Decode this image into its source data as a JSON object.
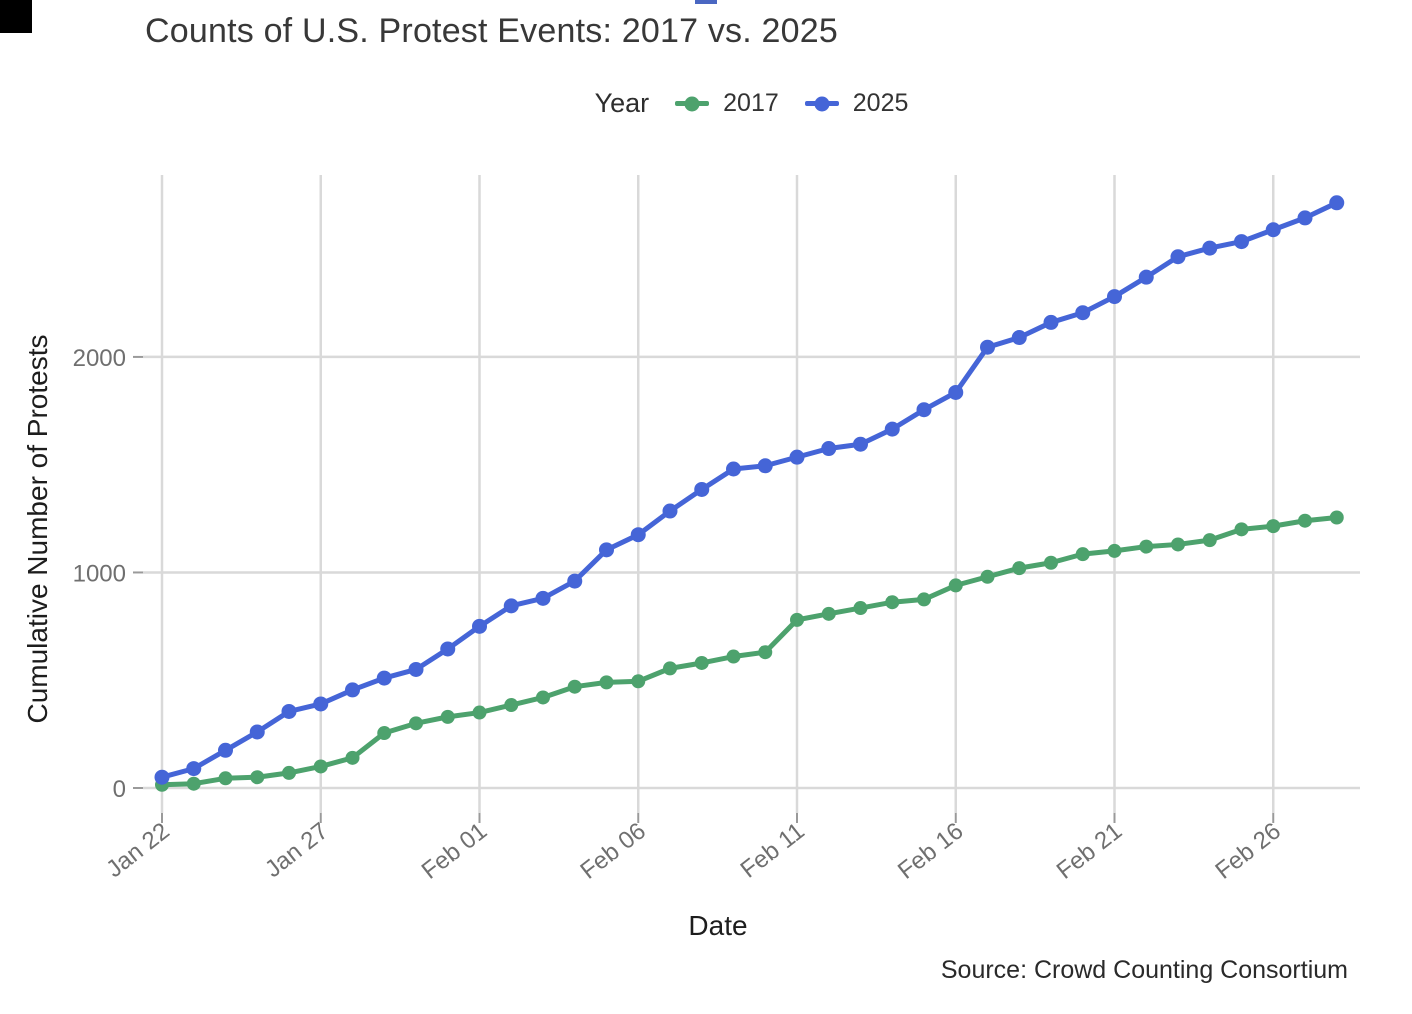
{
  "page": {
    "background": "#ffffff",
    "artifacts": {
      "corner_mark_color": "#000000",
      "top_dash_color": "#4a67c2"
    }
  },
  "chart_data": {
    "type": "line",
    "title": "Counts of U.S. Protest Events: 2017 vs. 2025",
    "legend_title": "Year",
    "legend_position": "top",
    "xlabel": "Date",
    "ylabel": "Cumulative Number of Protests",
    "source": "Source: Crowd Counting Consortium",
    "grid": true,
    "ylim": [
      0,
      2845
    ],
    "y_ticks": [
      0,
      1000,
      2000
    ],
    "x_tick_labels": [
      "Jan 22",
      "Jan 27",
      "Feb 01",
      "Feb 06",
      "Feb 11",
      "Feb 16",
      "Feb 21",
      "Feb 26"
    ],
    "x_tick_indices": [
      0,
      5,
      10,
      15,
      20,
      25,
      30,
      35
    ],
    "x": [
      "Jan 22",
      "Jan 23",
      "Jan 24",
      "Jan 25",
      "Jan 26",
      "Jan 27",
      "Jan 28",
      "Jan 29",
      "Jan 30",
      "Jan 31",
      "Feb 01",
      "Feb 02",
      "Feb 03",
      "Feb 04",
      "Feb 05",
      "Feb 06",
      "Feb 07",
      "Feb 08",
      "Feb 09",
      "Feb 10",
      "Feb 11",
      "Feb 12",
      "Feb 13",
      "Feb 14",
      "Feb 15",
      "Feb 16",
      "Feb 17",
      "Feb 18",
      "Feb 19",
      "Feb 20",
      "Feb 21",
      "Feb 22",
      "Feb 23",
      "Feb 24",
      "Feb 25",
      "Feb 26",
      "Feb 27",
      "Feb 28"
    ],
    "colors": {
      "grid": "#d9d9d9",
      "tick": "#9a9a9a",
      "tick_label": "#6f6f6f"
    },
    "series": [
      {
        "name": "2017",
        "color": "#4da26d",
        "values": [
          15,
          20,
          45,
          50,
          70,
          100,
          140,
          255,
          300,
          330,
          350,
          385,
          420,
          470,
          490,
          495,
          555,
          580,
          610,
          630,
          780,
          808,
          835,
          862,
          875,
          940,
          980,
          1020,
          1045,
          1085,
          1100,
          1120,
          1130,
          1150,
          1200,
          1215,
          1240,
          1255
        ]
      },
      {
        "name": "2025",
        "color": "#4565d7",
        "values": [
          50,
          90,
          175,
          260,
          355,
          390,
          455,
          510,
          550,
          645,
          750,
          845,
          880,
          960,
          1105,
          1175,
          1285,
          1385,
          1480,
          1495,
          1535,
          1575,
          1595,
          1665,
          1755,
          1835,
          2045,
          2090,
          2160,
          2205,
          2280,
          2370,
          2465,
          2505,
          2535,
          2590,
          2645,
          2715
        ]
      }
    ]
  }
}
